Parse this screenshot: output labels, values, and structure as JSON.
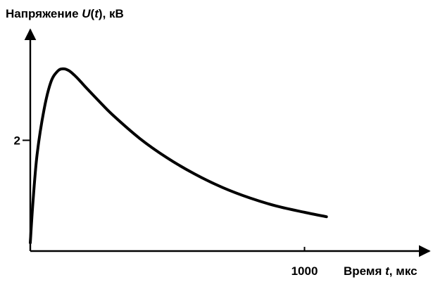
{
  "chart_data": {
    "type": "line",
    "ylabel": {
      "prefix": "Напряжение ",
      "symbol": "U",
      "paren_open": "(",
      "variable": "t",
      "paren_close": ")",
      "unit": ", кВ"
    },
    "xlabel": {
      "prefix": "Время ",
      "variable": "t",
      "unit": ", мкс"
    },
    "x_ticks": [
      {
        "value": 1000,
        "label": "1000"
      }
    ],
    "y_ticks": [
      {
        "value": 2,
        "label": "2"
      }
    ],
    "xlim": [
      0,
      1430
    ],
    "ylim": [
      0,
      4
    ],
    "grid": false,
    "series": [
      {
        "x": [
          0,
          10,
          25,
          50,
          75,
          100,
          120,
          140,
          160,
          180,
          200,
          250,
          300,
          400,
          500,
          600,
          700,
          800,
          900,
          1000,
          1080
        ],
        "y": [
          0.15,
          0.9,
          1.75,
          2.55,
          3.05,
          3.25,
          3.29,
          3.26,
          3.18,
          3.08,
          2.97,
          2.71,
          2.46,
          2.03,
          1.68,
          1.39,
          1.15,
          0.96,
          0.81,
          0.7,
          0.62
        ]
      }
    ]
  }
}
